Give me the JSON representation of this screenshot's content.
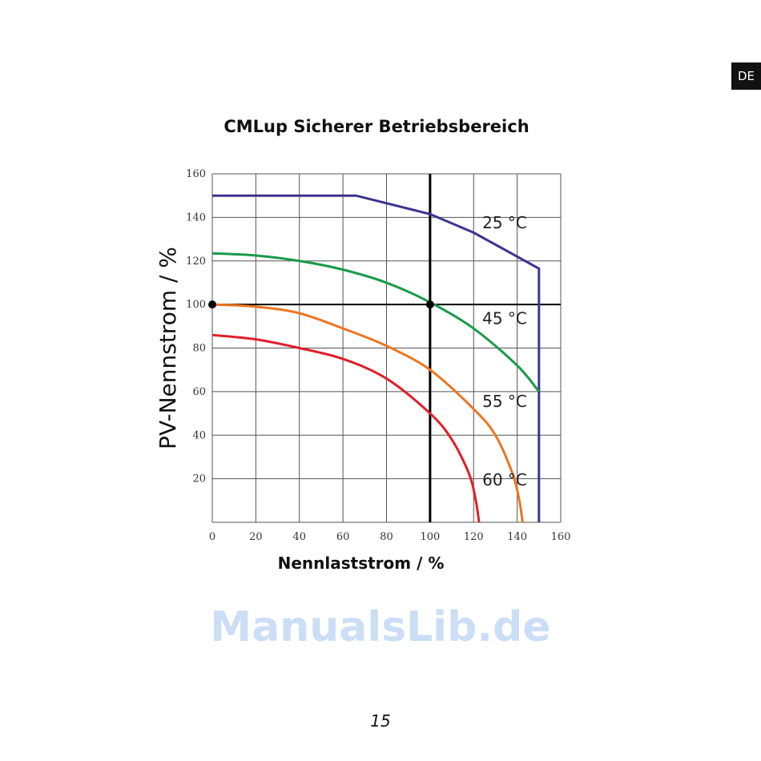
{
  "badge": "DE",
  "page_number": "15",
  "watermark": "ManualsLib.de",
  "chart_data": {
    "type": "line",
    "title": "CMLup Sicherer Betriebsbereich",
    "xlabel": "Nennlaststrom / %",
    "ylabel": "PV-Nennstrom / %",
    "xlim": [
      0,
      160
    ],
    "ylim": [
      0,
      160
    ],
    "xticks": [
      "0",
      "20",
      "40",
      "60",
      "80",
      "100",
      "120",
      "140",
      "160"
    ],
    "yticks": [
      "20",
      "40",
      "60",
      "80",
      "100",
      "120",
      "140",
      "160"
    ],
    "grid": true,
    "reference_lines": {
      "x": 100,
      "y": 100
    },
    "markers": [
      {
        "x": 0,
        "y": 100
      },
      {
        "x": 100,
        "y": 100
      }
    ],
    "series": [
      {
        "name": "25 °C",
        "color": "#3a3590",
        "points": [
          [
            0,
            150
          ],
          [
            66,
            150
          ],
          [
            100,
            141.5
          ],
          [
            120,
            133
          ],
          [
            140,
            122
          ],
          [
            150,
            116.5
          ],
          [
            150,
            0
          ]
        ],
        "label_at": [
          124,
          135
        ]
      },
      {
        "name": "45 °C",
        "color": "#1a9a4a",
        "points": [
          [
            0,
            123.5
          ],
          [
            20,
            122.5
          ],
          [
            40,
            120
          ],
          [
            60,
            116
          ],
          [
            80,
            110
          ],
          [
            100,
            101
          ],
          [
            120,
            89
          ],
          [
            140,
            72
          ],
          [
            150,
            60
          ]
        ],
        "label_at": [
          124,
          91
        ]
      },
      {
        "name": "55 °C",
        "color": "#ee7420",
        "points": [
          [
            0,
            100
          ],
          [
            20,
            99
          ],
          [
            40,
            96
          ],
          [
            60,
            89
          ],
          [
            80,
            81
          ],
          [
            100,
            70
          ],
          [
            120,
            52
          ],
          [
            130,
            40
          ],
          [
            138,
            22
          ],
          [
            141,
            10
          ],
          [
            142.5,
            0
          ]
        ],
        "label_at": [
          124,
          53
        ]
      },
      {
        "name": "60 °C",
        "color": "#e01f2a",
        "points": [
          [
            0,
            86
          ],
          [
            20,
            84
          ],
          [
            40,
            80
          ],
          [
            60,
            75
          ],
          [
            80,
            66
          ],
          [
            100,
            50
          ],
          [
            110,
            38
          ],
          [
            118,
            22
          ],
          [
            121,
            10
          ],
          [
            122.5,
            0
          ]
        ],
        "label_at": [
          124,
          17
        ]
      }
    ]
  }
}
